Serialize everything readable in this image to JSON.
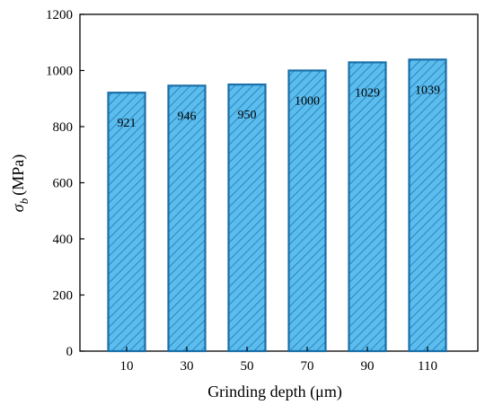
{
  "chart_data": {
    "type": "bar",
    "categories": [
      "10",
      "30",
      "50",
      "70",
      "90",
      "110"
    ],
    "values": [
      921,
      946,
      950,
      1000,
      1029,
      1039
    ],
    "data_labels": [
      "921",
      "946",
      "950",
      "1000",
      "1029",
      "1039"
    ],
    "xlabel": "Grinding depth (μm)",
    "ylabel": {
      "symbol": "σ",
      "subscript": "b",
      "unit": "(MPa)"
    },
    "ylim": [
      0,
      1200
    ],
    "yticks": [
      0,
      200,
      400,
      600,
      800,
      1000,
      1200
    ],
    "grid": false,
    "legend": "none",
    "bar_fill": "#5bbcee",
    "bar_stroke": "#1a6fa8",
    "hatch": "diagonal"
  }
}
